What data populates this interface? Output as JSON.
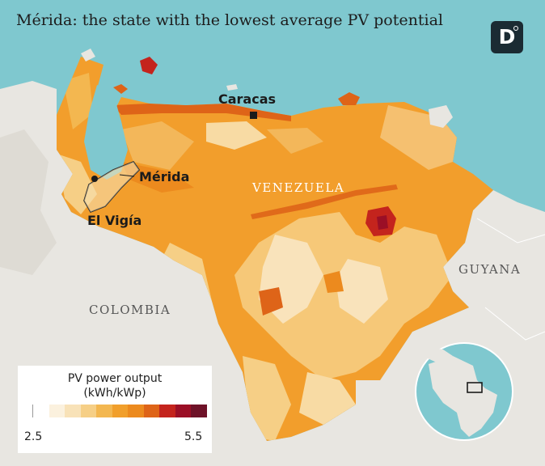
{
  "title": "Mérida: the state with the lowest average PV potential",
  "logo": {
    "letter": "D"
  },
  "labels": {
    "venezuela": "VENEZUELA",
    "colombia": "COLOMBIA",
    "guyana": "GUYANA",
    "caracas": "Caracas",
    "merida": "Mérida",
    "el_vigia": "El Vigía"
  },
  "legend": {
    "title_line1": "PV power output",
    "title_line2": "(kWh/kWp)",
    "min": "2.5",
    "max": "5.5",
    "colors": [
      "#ffffff",
      "#fbf1de",
      "#f8e2b8",
      "#f6cf86",
      "#f3b750",
      "#f19f2b",
      "#ec8a1e",
      "#de6418",
      "#c4241d",
      "#9b0f26",
      "#6e1228"
    ]
  },
  "colors": {
    "sea": "#7fc8cf",
    "land_neighbor": "#e8e6e1",
    "pv_main": "#f29e2c",
    "pv_low": "#f7d9a0",
    "pv_high": "#d9541a"
  }
}
